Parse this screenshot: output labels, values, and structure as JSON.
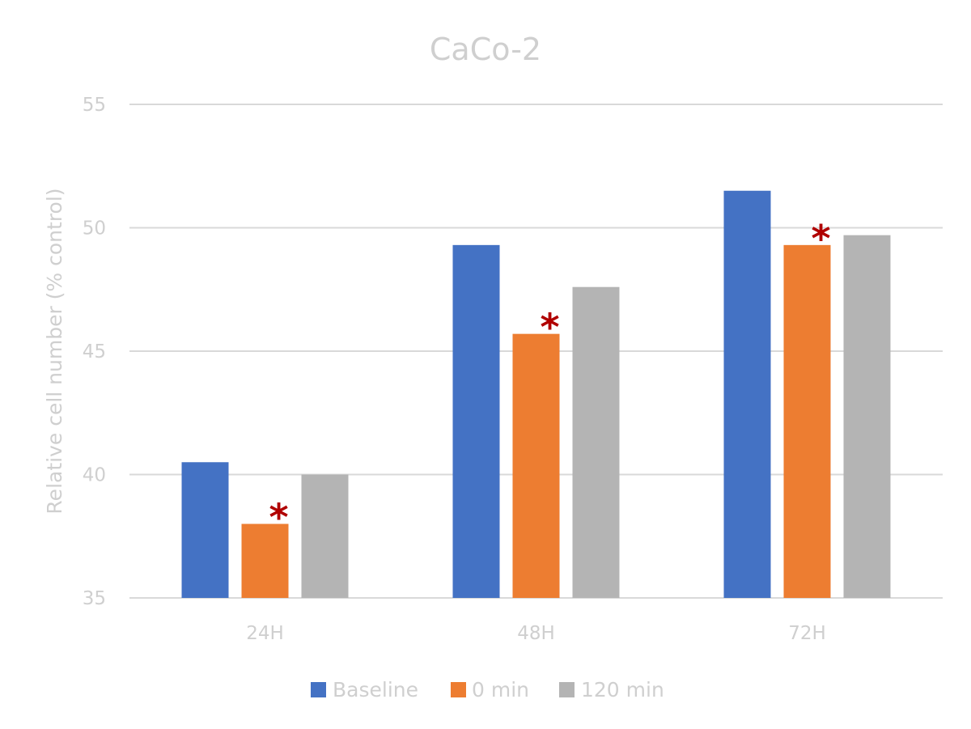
{
  "chart_data": {
    "type": "bar",
    "title": "CaCo-2",
    "xlabel": "",
    "ylabel": "Relative cell number (% control)",
    "categories": [
      "24H",
      "48H",
      "72H"
    ],
    "ylim": [
      35,
      55
    ],
    "yticks": [
      35,
      40,
      45,
      50,
      55
    ],
    "grid": true,
    "legend_position": "bottom",
    "series": [
      {
        "name": "Baseline",
        "color": "#4472c4",
        "values": [
          40.5,
          49.3,
          51.5
        ]
      },
      {
        "name": "0 min",
        "color": "#ed7d31",
        "values": [
          38.0,
          45.7,
          49.3
        ]
      },
      {
        "name": "120 min",
        "color": "#b4b4b4",
        "values": [
          40.0,
          47.6,
          49.7
        ]
      }
    ],
    "annotations": [
      {
        "text": "*",
        "series": "0 min",
        "category": "24H"
      },
      {
        "text": "*",
        "series": "0 min",
        "category": "48H"
      },
      {
        "text": "*",
        "series": "0 min",
        "category": "72H"
      }
    ]
  }
}
